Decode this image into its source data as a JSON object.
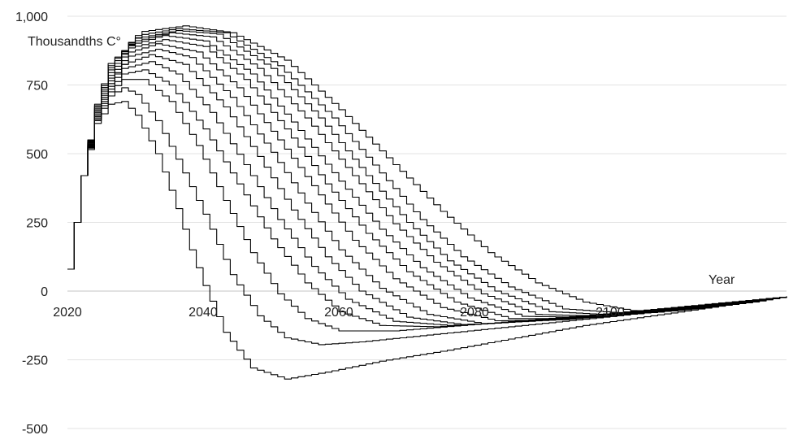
{
  "chart_data": {
    "type": "line",
    "title": "",
    "ylabel": "Thousandths C°",
    "xlabel": "Year",
    "xlim": [
      2020,
      2126
    ],
    "ylim": [
      -500,
      1000
    ],
    "x_ticks": [
      2020,
      2040,
      2060,
      2080,
      2100
    ],
    "x_tick_labels": [
      "2020",
      "2040",
      "2060",
      "2080",
      "2100"
    ],
    "y_ticks": [
      1000,
      750,
      500,
      250,
      0,
      -250,
      -500
    ],
    "y_tick_labels": [
      "1,000",
      "750",
      "500",
      "250",
      "0",
      "-250",
      "-500"
    ],
    "grid": true,
    "legend": "none",
    "line_color": "#000000",
    "series": [
      {
        "values": [
          [
            2020,
            80
          ],
          [
            2022,
            420
          ],
          [
            2024,
            610
          ],
          [
            2026,
            680
          ],
          [
            2028,
            690
          ],
          [
            2030,
            640
          ],
          [
            2033,
            500
          ],
          [
            2036,
            300
          ],
          [
            2038,
            150
          ],
          [
            2040,
            20
          ],
          [
            2043,
            -150
          ],
          [
            2047,
            -280
          ],
          [
            2052,
            -320
          ],
          [
            2058,
            -295
          ],
          [
            2066,
            -255
          ],
          [
            2076,
            -215
          ],
          [
            2086,
            -170
          ],
          [
            2096,
            -125
          ],
          [
            2106,
            -90
          ],
          [
            2116,
            -55
          ],
          [
            2126,
            -20
          ]
        ]
      },
      {
        "values": [
          [
            2020,
            80
          ],
          [
            2022,
            420
          ],
          [
            2024,
            620
          ],
          [
            2026,
            710
          ],
          [
            2028,
            740
          ],
          [
            2030,
            715
          ],
          [
            2033,
            620
          ],
          [
            2036,
            480
          ],
          [
            2040,
            280
          ],
          [
            2044,
            60
          ],
          [
            2048,
            -90
          ],
          [
            2052,
            -170
          ],
          [
            2057,
            -195
          ],
          [
            2063,
            -185
          ],
          [
            2071,
            -165
          ],
          [
            2081,
            -140
          ],
          [
            2091,
            -115
          ],
          [
            2101,
            -90
          ],
          [
            2111,
            -62
          ],
          [
            2126,
            -20
          ]
        ]
      },
      {
        "values": [
          [
            2020,
            80
          ],
          [
            2022,
            420
          ],
          [
            2024,
            625
          ],
          [
            2026,
            725
          ],
          [
            2028,
            770
          ],
          [
            2031,
            770
          ],
          [
            2035,
            690
          ],
          [
            2039,
            530
          ],
          [
            2043,
            330
          ],
          [
            2047,
            140
          ],
          [
            2051,
            -10
          ],
          [
            2055,
            -100
          ],
          [
            2060,
            -145
          ],
          [
            2068,
            -145
          ],
          [
            2078,
            -125
          ],
          [
            2088,
            -105
          ],
          [
            2098,
            -85
          ],
          [
            2108,
            -62
          ],
          [
            2126,
            -20
          ]
        ]
      },
      {
        "values": [
          [
            2020,
            80
          ],
          [
            2022,
            420
          ],
          [
            2024,
            630
          ],
          [
            2026,
            735
          ],
          [
            2028,
            790
          ],
          [
            2031,
            805
          ],
          [
            2035,
            750
          ],
          [
            2040,
            590
          ],
          [
            2045,
            390
          ],
          [
            2050,
            190
          ],
          [
            2055,
            30
          ],
          [
            2060,
            -75
          ],
          [
            2066,
            -125
          ],
          [
            2074,
            -130
          ],
          [
            2084,
            -115
          ],
          [
            2094,
            -95
          ],
          [
            2104,
            -72
          ],
          [
            2114,
            -50
          ],
          [
            2126,
            -20
          ]
        ]
      },
      {
        "values": [
          [
            2020,
            80
          ],
          [
            2022,
            420
          ],
          [
            2024,
            635
          ],
          [
            2026,
            745
          ],
          [
            2028,
            810
          ],
          [
            2032,
            835
          ],
          [
            2036,
            790
          ],
          [
            2041,
            650
          ],
          [
            2046,
            460
          ],
          [
            2051,
            260
          ],
          [
            2056,
            90
          ],
          [
            2061,
            -30
          ],
          [
            2068,
            -110
          ],
          [
            2076,
            -125
          ],
          [
            2086,
            -112
          ],
          [
            2096,
            -92
          ],
          [
            2106,
            -70
          ],
          [
            2116,
            -48
          ],
          [
            2126,
            -20
          ]
        ]
      },
      {
        "values": [
          [
            2020,
            80
          ],
          [
            2022,
            420
          ],
          [
            2024,
            640
          ],
          [
            2026,
            755
          ],
          [
            2028,
            825
          ],
          [
            2032,
            860
          ],
          [
            2037,
            825
          ],
          [
            2043,
            670
          ],
          [
            2048,
            490
          ],
          [
            2053,
            295
          ],
          [
            2058,
            125
          ],
          [
            2063,
            0
          ],
          [
            2070,
            -95
          ],
          [
            2078,
            -122
          ],
          [
            2088,
            -110
          ],
          [
            2098,
            -90
          ],
          [
            2108,
            -68
          ],
          [
            2118,
            -44
          ],
          [
            2126,
            -20
          ]
        ]
      },
      {
        "values": [
          [
            2020,
            80
          ],
          [
            2022,
            420
          ],
          [
            2024,
            645
          ],
          [
            2026,
            765
          ],
          [
            2029,
            855
          ],
          [
            2033,
            880
          ],
          [
            2038,
            850
          ],
          [
            2044,
            705
          ],
          [
            2050,
            505
          ],
          [
            2055,
            320
          ],
          [
            2060,
            150
          ],
          [
            2066,
            10
          ],
          [
            2073,
            -85
          ],
          [
            2081,
            -118
          ],
          [
            2091,
            -106
          ],
          [
            2101,
            -85
          ],
          [
            2111,
            -62
          ],
          [
            2126,
            -20
          ]
        ]
      },
      {
        "values": [
          [
            2020,
            80
          ],
          [
            2022,
            420
          ],
          [
            2024,
            650
          ],
          [
            2026,
            775
          ],
          [
            2029,
            870
          ],
          [
            2033,
            900
          ],
          [
            2039,
            870
          ],
          [
            2045,
            740
          ],
          [
            2051,
            550
          ],
          [
            2057,
            350
          ],
          [
            2062,
            185
          ],
          [
            2068,
            45
          ],
          [
            2075,
            -60
          ],
          [
            2083,
            -108
          ],
          [
            2093,
            -104
          ],
          [
            2103,
            -82
          ],
          [
            2113,
            -58
          ],
          [
            2126,
            -20
          ]
        ]
      },
      {
        "values": [
          [
            2020,
            80
          ],
          [
            2022,
            420
          ],
          [
            2024,
            655
          ],
          [
            2026,
            785
          ],
          [
            2029,
            885
          ],
          [
            2034,
            915
          ],
          [
            2040,
            890
          ],
          [
            2046,
            770
          ],
          [
            2052,
            590
          ],
          [
            2058,
            390
          ],
          [
            2064,
            210
          ],
          [
            2070,
            70
          ],
          [
            2077,
            -40
          ],
          [
            2085,
            -100
          ],
          [
            2095,
            -100
          ],
          [
            2105,
            -80
          ],
          [
            2115,
            -55
          ],
          [
            2126,
            -20
          ]
        ]
      },
      {
        "values": [
          [
            2020,
            80
          ],
          [
            2022,
            420
          ],
          [
            2024,
            660
          ],
          [
            2026,
            795
          ],
          [
            2029,
            895
          ],
          [
            2034,
            930
          ],
          [
            2040,
            910
          ],
          [
            2047,
            790
          ],
          [
            2053,
            615
          ],
          [
            2060,
            400
          ],
          [
            2066,
            225
          ],
          [
            2072,
            85
          ],
          [
            2079,
            -25
          ],
          [
            2087,
            -92
          ],
          [
            2097,
            -96
          ],
          [
            2107,
            -76
          ],
          [
            2117,
            -50
          ],
          [
            2126,
            -20
          ]
        ]
      },
      {
        "values": [
          [
            2020,
            80
          ],
          [
            2022,
            420
          ],
          [
            2024,
            665
          ],
          [
            2026,
            805
          ],
          [
            2029,
            905
          ],
          [
            2035,
            940
          ],
          [
            2041,
            925
          ],
          [
            2048,
            810
          ],
          [
            2055,
            630
          ],
          [
            2062,
            420
          ],
          [
            2068,
            245
          ],
          [
            2074,
            105
          ],
          [
            2081,
            -10
          ],
          [
            2089,
            -85
          ],
          [
            2099,
            -92
          ],
          [
            2109,
            -72
          ],
          [
            2119,
            -46
          ],
          [
            2126,
            -20
          ]
        ]
      },
      {
        "values": [
          [
            2020,
            80
          ],
          [
            2022,
            420
          ],
          [
            2024,
            670
          ],
          [
            2026,
            812
          ],
          [
            2030,
            920
          ],
          [
            2036,
            948
          ],
          [
            2042,
            935
          ],
          [
            2050,
            810
          ],
          [
            2057,
            630
          ],
          [
            2064,
            420
          ],
          [
            2070,
            250
          ],
          [
            2076,
            110
          ],
          [
            2083,
            0
          ],
          [
            2091,
            -75
          ],
          [
            2101,
            -88
          ],
          [
            2111,
            -68
          ],
          [
            2121,
            -40
          ],
          [
            2126,
            -20
          ]
        ]
      },
      {
        "values": [
          [
            2020,
            80
          ],
          [
            2022,
            420
          ],
          [
            2024,
            675
          ],
          [
            2026,
            820
          ],
          [
            2030,
            930
          ],
          [
            2036,
            955
          ],
          [
            2043,
            940
          ],
          [
            2051,
            820
          ],
          [
            2059,
            630
          ],
          [
            2066,
            430
          ],
          [
            2072,
            260
          ],
          [
            2078,
            125
          ],
          [
            2085,
            15
          ],
          [
            2093,
            -65
          ],
          [
            2103,
            -82
          ],
          [
            2113,
            -62
          ],
          [
            2126,
            -20
          ]
        ]
      },
      {
        "values": [
          [
            2020,
            80
          ],
          [
            2022,
            420
          ],
          [
            2024,
            680
          ],
          [
            2026,
            828
          ],
          [
            2031,
            945
          ],
          [
            2037,
            965
          ],
          [
            2044,
            940
          ],
          [
            2052,
            840
          ],
          [
            2060,
            660
          ],
          [
            2068,
            460
          ],
          [
            2075,
            290
          ],
          [
            2082,
            140
          ],
          [
            2089,
            30
          ],
          [
            2096,
            -40
          ],
          [
            2104,
            -75
          ],
          [
            2114,
            -58
          ],
          [
            2126,
            -20
          ]
        ]
      }
    ]
  }
}
